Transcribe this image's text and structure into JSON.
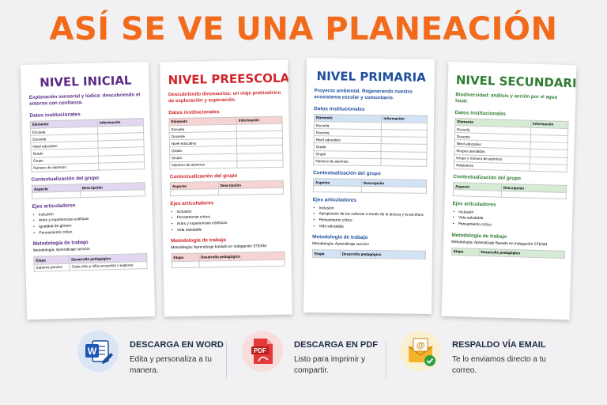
{
  "headline": "ASÍ SE VE UNA PLANEACIÓN",
  "colors": {
    "orange": "#f26a1b",
    "purple": "#5b2a86",
    "red": "#d0262b",
    "blue": "#1f4e9c",
    "green": "#2e7d32"
  },
  "sheets": [
    {
      "title": "NIVEL INICIAL",
      "subtitle": "Exploración sensorial y lúdica: descubriendo el entorno con confianza.",
      "datos_heading": "Datos institucionales",
      "datos_cols": [
        "Elemento",
        "Información"
      ],
      "datos_rows": [
        "Escuela",
        "Docente",
        "Nivel educativo",
        "Grado",
        "Grupo",
        "Número de alumnos"
      ],
      "contexto_heading": "Contextualización del grupo",
      "contexto_cols": [
        "Aspecto",
        "Descripción"
      ],
      "ejes_heading": "Ejes articuladores",
      "ejes": [
        "Inclusión",
        "Artes y experiencias estéticas",
        "Igualdad de género",
        "Pensamiento crítico"
      ],
      "metodo_heading": "Metodología de trabajo",
      "metodo_text": "Metodología: Aprendizaje servicio",
      "etapa_cols": [
        "Etapa",
        "Desarrollo pedagógico"
      ],
      "etapa_rows": [
        [
          "Saberes previos",
          "Cada niño y niña encuentra ó explorar"
        ]
      ]
    },
    {
      "title": "NIVEL PREESCOLAR",
      "subtitle": "Descubriendo dinosaurios: un viaje prehistórico de exploración y superación.",
      "datos_heading": "Datos institucionales",
      "datos_cols": [
        "Elemento",
        "Información"
      ],
      "datos_rows": [
        "Escuela",
        "Docente",
        "Nivel educativo",
        "Grado",
        "Grupo",
        "Número de alumnos"
      ],
      "contexto_heading": "Contextualización del grupo",
      "contexto_cols": [
        "Aspecto",
        "Descripción"
      ],
      "ejes_heading": "Ejes articuladores",
      "ejes": [
        "Inclusión",
        "Pensamiento crítico",
        "Artes y experiencias estéticas",
        "Vida saludable"
      ],
      "metodo_heading": "Metodología de trabajo",
      "metodo_text": "Metodología: Aprendizaje basado en Indagación STEAM",
      "etapa_cols": [
        "Etapa",
        "Desarrollo pedagógico"
      ],
      "etapa_rows": []
    },
    {
      "title": "NIVEL PRIMARIA",
      "subtitle": "Proyecto ambiental. Regenerando nuestro ecosistema escolar y comunitario.",
      "datos_heading": "Datos institucionales",
      "datos_cols": [
        "Elemento",
        "Información"
      ],
      "datos_rows": [
        "Escuela",
        "Docente",
        "Nivel educativo",
        "Grado",
        "Grupo",
        "Número de alumnos"
      ],
      "contexto_heading": "Contextualización del grupo",
      "contexto_cols": [
        "Aspecto",
        "Descripción"
      ],
      "ejes_heading": "Ejes articuladores",
      "ejes": [
        "Inclusión",
        "Apropiación de las culturas a través de la lectura y la escritura",
        "Pensamiento crítico",
        "Vida saludable"
      ],
      "metodo_heading": "Metodología de trabajo",
      "metodo_text": "Metodología: Aprendizaje servicio",
      "etapa_cols": [
        "Etapa",
        "Desarrollo pedagógico"
      ],
      "etapa_rows": []
    },
    {
      "title": "NIVEL SECUNDARIA",
      "subtitle": "Biodiversidad: análisis y acción por el agua local.",
      "datos_heading": "Datos institucionales",
      "datos_cols": [
        "Elemento",
        "Información"
      ],
      "datos_rows": [
        "Escuela",
        "Docente",
        "Nivel educativo",
        "Grupos atendidos",
        "Grupo y número de alumnos",
        "Asignatura"
      ],
      "contexto_heading": "Contextualización del grupo",
      "contexto_cols": [
        "Aspecto",
        "Descripción"
      ],
      "ejes_heading": "Ejes articuladores",
      "ejes": [
        "Inclusión",
        "Vida saludable",
        "Pensamiento crítico"
      ],
      "metodo_heading": "Metodología de trabajo",
      "metodo_text": "Metodología: Aprendizaje Basado en Indagación STEAM",
      "etapa_cols": [
        "Etapa",
        "Desarrollo pedagógico"
      ],
      "etapa_rows": []
    }
  ],
  "features": [
    {
      "icon": "word-icon",
      "title": "DESCARGA EN WORD",
      "desc": "Edita y personaliza a tu manera."
    },
    {
      "icon": "pdf-icon",
      "title": "DESCARGA EN PDF",
      "desc": "Listo para imprimir y compartir."
    },
    {
      "icon": "email-icon",
      "title": "RESPALDO VÍA EMAIL",
      "desc": "Te lo enviamos directo a tu correo."
    }
  ]
}
